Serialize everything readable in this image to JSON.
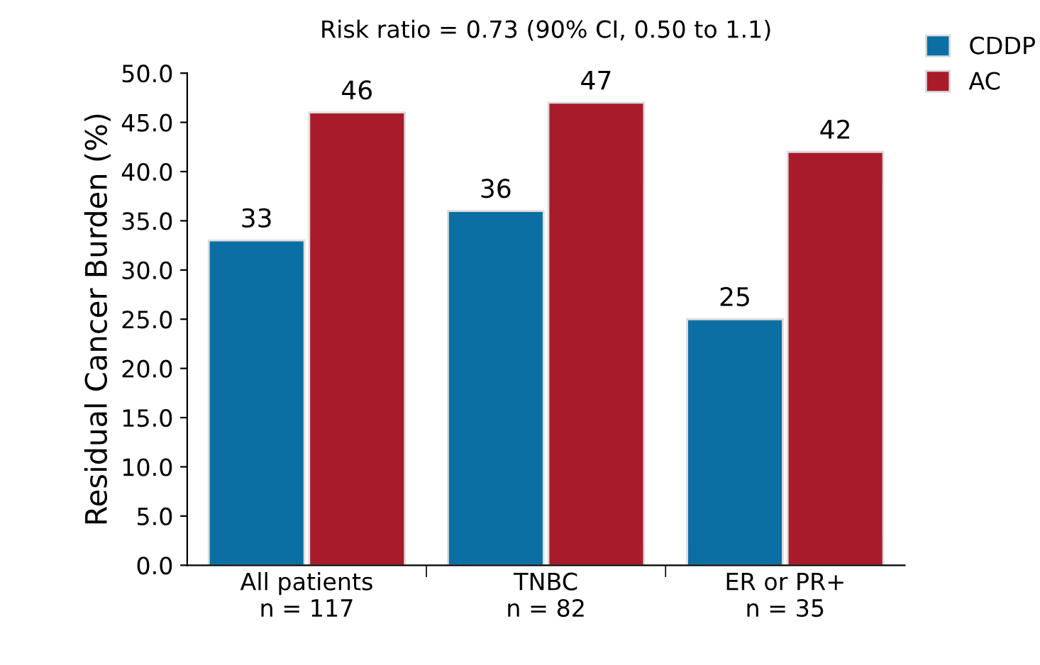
{
  "chart_data": {
    "type": "bar",
    "title": "Risk ratio = 0.73 (90% CI, 0.50 to 1.1)",
    "ylabel": "Residual Cancer Burden (%)",
    "categories": [
      "All patients\nn = 117",
      "TNBC\nn = 82",
      "ER or PR+\nn = 35"
    ],
    "series": [
      {
        "name": "CDDP",
        "color": "#0b6fa4",
        "values": [
          33,
          36,
          25
        ]
      },
      {
        "name": "AC",
        "color": "#a81b2b",
        "values": [
          46,
          47,
          42
        ]
      }
    ],
    "ylim": [
      0,
      50
    ],
    "yticks": [
      {
        "value": 0,
        "label": "0.0"
      },
      {
        "value": 5,
        "label": "5.0"
      },
      {
        "value": 10,
        "label": "10.0"
      },
      {
        "value": 15,
        "label": "15.0"
      },
      {
        "value": 20,
        "label": "20.0"
      },
      {
        "value": 25,
        "label": "25.0"
      },
      {
        "value": 30,
        "label": "30.0"
      },
      {
        "value": 35,
        "label": "35.0"
      },
      {
        "value": 40,
        "label": "40.0"
      },
      {
        "value": 45,
        "label": "45.0"
      },
      {
        "value": 50,
        "label": "50.0"
      }
    ],
    "data_labels": true,
    "grid": false,
    "legend": "top right"
  }
}
